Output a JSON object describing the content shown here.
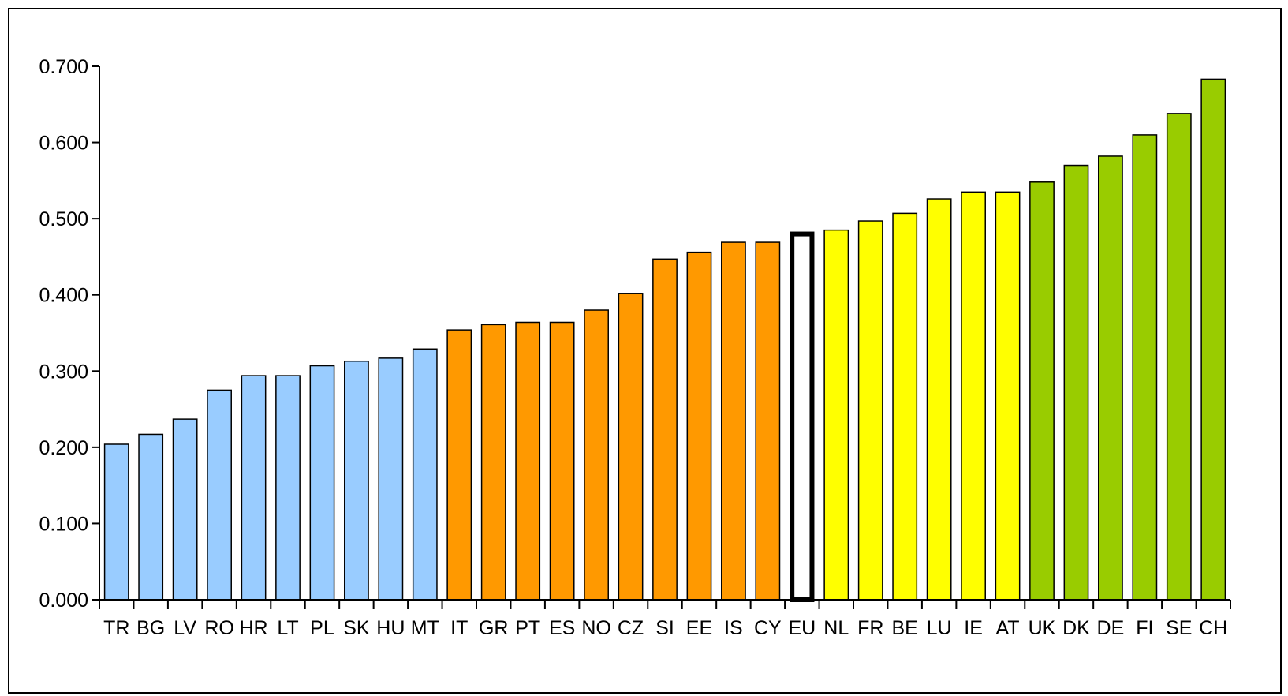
{
  "chart_data": {
    "type": "bar",
    "title": "",
    "xlabel": "",
    "ylabel": "",
    "ylim": [
      0,
      0.7
    ],
    "yticks": [
      "0.000",
      "0.100",
      "0.200",
      "0.300",
      "0.400",
      "0.500",
      "0.600",
      "0.700"
    ],
    "grid": false,
    "categories": [
      "TR",
      "BG",
      "LV",
      "RO",
      "HR",
      "LT",
      "PL",
      "SK",
      "HU",
      "MT",
      "IT",
      "GR",
      "PT",
      "ES",
      "NO",
      "CZ",
      "SI",
      "EE",
      "IS",
      "CY",
      "EU",
      "NL",
      "FR",
      "BE",
      "LU",
      "IE",
      "AT",
      "UK",
      "DK",
      "DE",
      "FI",
      "SE",
      "CH"
    ],
    "values": [
      0.204,
      0.217,
      0.237,
      0.275,
      0.294,
      0.294,
      0.307,
      0.313,
      0.317,
      0.329,
      0.354,
      0.361,
      0.364,
      0.364,
      0.38,
      0.402,
      0.447,
      0.456,
      0.469,
      0.469,
      0.483,
      0.485,
      0.497,
      0.507,
      0.526,
      0.535,
      0.535,
      0.548,
      0.57,
      0.582,
      0.61,
      0.638,
      0.683
    ],
    "groups": [
      "blue",
      "blue",
      "blue",
      "blue",
      "blue",
      "blue",
      "blue",
      "blue",
      "blue",
      "blue",
      "orange",
      "orange",
      "orange",
      "orange",
      "orange",
      "orange",
      "orange",
      "orange",
      "orange",
      "orange",
      "eu",
      "yellow",
      "yellow",
      "yellow",
      "yellow",
      "yellow",
      "yellow",
      "green",
      "green",
      "green",
      "green",
      "green",
      "green"
    ],
    "colors": {
      "blue": "#99ccff",
      "orange": "#ff9900",
      "eu": "#ffffff",
      "yellow": "#ffff00",
      "green": "#99cc00",
      "outline": "#000000"
    }
  }
}
